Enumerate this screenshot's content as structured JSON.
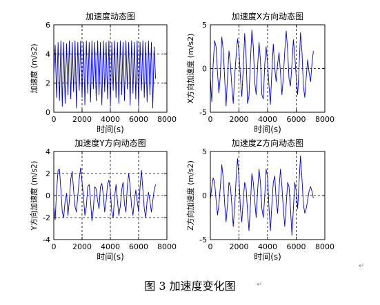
{
  "caption": "图 3  加速度变化图",
  "paragraph_mark": "↵",
  "colors": {
    "series": "#0000cc",
    "axis": "#000000",
    "grid": "#000000",
    "background": "#ffffff"
  },
  "chart_data": [
    {
      "type": "line",
      "title": "加速度动态图",
      "xlabel": "时间(s)",
      "ylabel": "加速度 (m/s2)",
      "xlim": [
        0,
        8000
      ],
      "ylim": [
        0,
        6
      ],
      "xticks": [
        0,
        2000,
        4000,
        6000,
        8000
      ],
      "yticks": [
        0,
        2,
        4,
        6
      ],
      "xtick_labels": [
        "0",
        "2000",
        "4000",
        "6000",
        "8000"
      ],
      "ytick_labels": [
        "0",
        "2",
        "4",
        "6"
      ],
      "grid": "dashed at x=2000,4000,6000 and y=2,4",
      "series": [
        {
          "x": [
            0,
            100,
            200,
            300,
            400,
            500,
            600,
            700,
            800,
            900,
            1000,
            1100,
            1200,
            1300,
            1400,
            1500,
            1600,
            1700,
            1800,
            1900,
            2000,
            2100,
            2200,
            2300,
            2400,
            2500,
            2600,
            2700,
            2800,
            2900,
            3000,
            3100,
            3200,
            3300,
            3400,
            3500,
            3600,
            3700,
            3800,
            3900,
            4000,
            4100,
            4200,
            4300,
            4400,
            4500,
            4600,
            4700,
            4800,
            4900,
            5000,
            5100,
            5200,
            5300,
            5400,
            5500,
            5600,
            5700,
            5800,
            5900,
            6000,
            6100,
            6200,
            6300,
            6400,
            6500,
            6600,
            6700,
            6800,
            6900,
            7000,
            7100,
            7200
          ],
          "y": [
            2.6,
            4.6,
            1.0,
            4.8,
            0.8,
            4.9,
            0.4,
            4.8,
            0.6,
            4.7,
            1.2,
            4.9,
            0.9,
            4.8,
            1.4,
            4.9,
            0.3,
            4.8,
            1.5,
            4.9,
            1.0,
            4.8,
            0.5,
            4.9,
            1.3,
            4.8,
            0.7,
            4.9,
            1.6,
            4.8,
            0.8,
            4.9,
            1.2,
            4.8,
            0.5,
            4.9,
            1.4,
            4.8,
            0.9,
            4.9,
            0.4,
            4.8,
            1.5,
            4.9,
            1.0,
            4.8,
            0.6,
            4.9,
            1.2,
            4.8,
            0.8,
            4.9,
            1.6,
            4.8,
            0.5,
            4.9,
            1.3,
            4.8,
            0.9,
            4.9,
            0.4,
            4.8,
            1.5,
            4.9,
            1.0,
            4.8,
            0.7,
            4.9,
            1.2,
            4.8,
            0.3,
            4.5,
            2.3
          ]
        }
      ]
    },
    {
      "type": "line",
      "title": "加速度X方向动态图",
      "xlabel": "时间(s)",
      "ylabel": "X方向加速度 (m/s2)",
      "xlim": [
        0,
        8000
      ],
      "ylim": [
        -5,
        5
      ],
      "xticks": [
        0,
        2000,
        4000,
        6000,
        8000
      ],
      "yticks": [
        -5,
        0,
        5
      ],
      "xtick_labels": [
        "0",
        "2000",
        "4000",
        "6000",
        "8000"
      ],
      "ytick_labels": [
        "-5",
        "0",
        "5"
      ],
      "grid": "dashed at x=2000,4000,6000 and y=0",
      "series": [
        {
          "x": [
            0,
            100,
            200,
            300,
            400,
            500,
            600,
            700,
            800,
            900,
            1000,
            1100,
            1200,
            1300,
            1400,
            1500,
            1600,
            1700,
            1800,
            1900,
            2000,
            2100,
            2200,
            2300,
            2400,
            2500,
            2600,
            2700,
            2800,
            2900,
            3000,
            3100,
            3200,
            3300,
            3400,
            3500,
            3600,
            3700,
            3800,
            3900,
            4000,
            4100,
            4200,
            4300,
            4400,
            4500,
            4600,
            4700,
            4800,
            4900,
            5000,
            5100,
            5200,
            5300,
            5400,
            5500,
            5600,
            5700,
            5800,
            5900,
            6000,
            6100,
            6200,
            6300,
            6400,
            6500,
            6600,
            6700,
            6800,
            6900,
            7000,
            7100,
            7200
          ],
          "y": [
            -1.0,
            -3.8,
            0.5,
            3.2,
            2.5,
            -0.5,
            -2.8,
            -0.8,
            3.6,
            2.1,
            -1.2,
            -4.3,
            -1.0,
            2.0,
            0.5,
            -2.0,
            -4.0,
            -0.8,
            1.5,
            3.4,
            2.0,
            -1.0,
            -3.2,
            0.0,
            4.0,
            1.2,
            -4.0,
            -3.2,
            0.8,
            4.4,
            2.5,
            -1.5,
            -3.0,
            0.2,
            3.0,
            1.0,
            -3.0,
            -3.5,
            0.5,
            2.5,
            0.5,
            -2.0,
            -4.1,
            -0.3,
            2.8,
            0.0,
            -1.5,
            0.5,
            1.8,
            -0.5,
            -3.0,
            -1.0,
            2.0,
            4.3,
            2.0,
            -1.2,
            -2.0,
            0.5,
            3.3,
            1.5,
            -1.0,
            -3.0,
            0.0,
            4.1,
            2.0,
            -2.0,
            -3.3,
            -1.0,
            1.0,
            -0.5,
            -1.5,
            0.5,
            2.0
          ]
        }
      ]
    },
    {
      "type": "line",
      "title": "加速度Y方向动态图",
      "xlabel": "时间(s)",
      "ylabel": "Y方向加速度 (m/s2)",
      "xlim": [
        0,
        8000
      ],
      "ylim": [
        -4,
        4
      ],
      "xticks": [
        0,
        2000,
        4000,
        6000,
        8000
      ],
      "yticks": [
        -4,
        -2,
        0,
        2,
        4
      ],
      "xtick_labels": [
        "0",
        "2000",
        "4000",
        "6000",
        "8000"
      ],
      "ytick_labels": [
        "-4",
        "-2",
        "0",
        "2",
        "4"
      ],
      "grid": "dashed at x=2000,4000,6000 and y=-2,0,2",
      "series": [
        {
          "x": [
            0,
            100,
            200,
            300,
            400,
            500,
            600,
            700,
            800,
            900,
            1000,
            1100,
            1200,
            1300,
            1400,
            1500,
            1600,
            1700,
            1800,
            1900,
            2000,
            2100,
            2200,
            2300,
            2400,
            2500,
            2600,
            2700,
            2800,
            2900,
            3000,
            3100,
            3200,
            3300,
            3400,
            3500,
            3600,
            3700,
            3800,
            3900,
            4000,
            4100,
            4200,
            4300,
            4400,
            4500,
            4600,
            4700,
            4800,
            4900,
            5000,
            5100,
            5200,
            5300,
            5400,
            5500,
            5600,
            5700,
            5800,
            5900,
            6000,
            6100,
            6200,
            6300,
            6400,
            6500,
            6600,
            6700,
            6800,
            6900,
            7000,
            7100,
            7200
          ],
          "y": [
            -1.0,
            -2.2,
            0.5,
            2.3,
            2.4,
            0.5,
            -1.5,
            -2.0,
            -0.5,
            0.2,
            -1.8,
            -0.5,
            1.5,
            2.2,
            0.5,
            -1.0,
            -1.5,
            0.0,
            1.5,
            2.5,
            1.2,
            -0.2,
            -1.8,
            -1.0,
            0.8,
            1.0,
            -0.5,
            -2.3,
            -1.2,
            0.8,
            0.6,
            -0.5,
            -1.2,
            0.8,
            1.1,
            0.0,
            -1.5,
            -0.5,
            1.0,
            1.4,
            0.5,
            -1.5,
            -2.0,
            -0.2,
            1.0,
            -0.5,
            -1.8,
            -1.0,
            0.5,
            1.2,
            -0.8,
            -1.5,
            0.8,
            2.0,
            0.8,
            -1.0,
            -1.8,
            -0.5,
            0.5,
            -0.5,
            -1.5,
            0.8,
            2.3,
            0.5,
            -1.2,
            -2.0,
            -0.5,
            0.3,
            -0.5,
            -1.5,
            -0.5,
            0.5,
            1.0
          ]
        }
      ]
    },
    {
      "type": "line",
      "title": "加速度Z方向动态图",
      "xlabel": "时间(s)",
      "ylabel": "Z方向加速度 (m/s2)",
      "xlim": [
        0,
        8000
      ],
      "ylim": [
        -5,
        5
      ],
      "xticks": [
        0,
        2000,
        4000,
        6000,
        8000
      ],
      "yticks": [
        -5,
        0,
        5
      ],
      "xtick_labels": [
        "0",
        "2000",
        "4000",
        "6000",
        "8000"
      ],
      "ytick_labels": [
        "-5",
        "0",
        "5"
      ],
      "grid": "dashed at x=2000,4000,6000 and y=0",
      "series": [
        {
          "x": [
            0,
            100,
            200,
            300,
            400,
            500,
            600,
            700,
            800,
            900,
            1000,
            1100,
            1200,
            1300,
            1400,
            1500,
            1600,
            1700,
            1800,
            1900,
            2000,
            2100,
            2200,
            2300,
            2400,
            2500,
            2600,
            2700,
            2800,
            2900,
            3000,
            3100,
            3200,
            3300,
            3400,
            3500,
            3600,
            3700,
            3800,
            3900,
            4000,
            4100,
            4200,
            4300,
            4400,
            4500,
            4600,
            4700,
            4800,
            4900,
            5000,
            5100,
            5200,
            5300,
            5400,
            5500,
            5600,
            5700,
            5800,
            5900,
            6000,
            6100,
            6200,
            6300,
            6400,
            6500,
            6600,
            6700,
            6800,
            6900,
            7000,
            7100,
            7200
          ],
          "y": [
            -0.5,
            1.0,
            2.0,
            1.5,
            -0.5,
            -2.2,
            -1.0,
            1.0,
            3.5,
            2.0,
            -1.0,
            -3.0,
            -1.0,
            1.5,
            1.0,
            -1.0,
            -3.5,
            -1.2,
            2.0,
            4.2,
            2.0,
            -1.5,
            -3.0,
            -0.5,
            1.5,
            0.8,
            -1.8,
            -4.0,
            -1.0,
            2.5,
            1.5,
            -0.5,
            -2.5,
            0.5,
            3.0,
            1.5,
            -1.5,
            -2.5,
            0.0,
            3.0,
            2.0,
            -1.5,
            -4.0,
            -1.0,
            1.5,
            2.2,
            -0.5,
            -2.0,
            0.8,
            3.0,
            1.0,
            -1.5,
            -3.5,
            -1.0,
            1.5,
            1.0,
            -1.5,
            -4.5,
            -1.5,
            1.5,
            0.5,
            -1.5,
            1.5,
            4.5,
            2.0,
            -1.0,
            -2.0,
            -1.5,
            -0.5,
            0.5,
            1.0,
            0.5,
            -0.3
          ]
        }
      ]
    }
  ]
}
